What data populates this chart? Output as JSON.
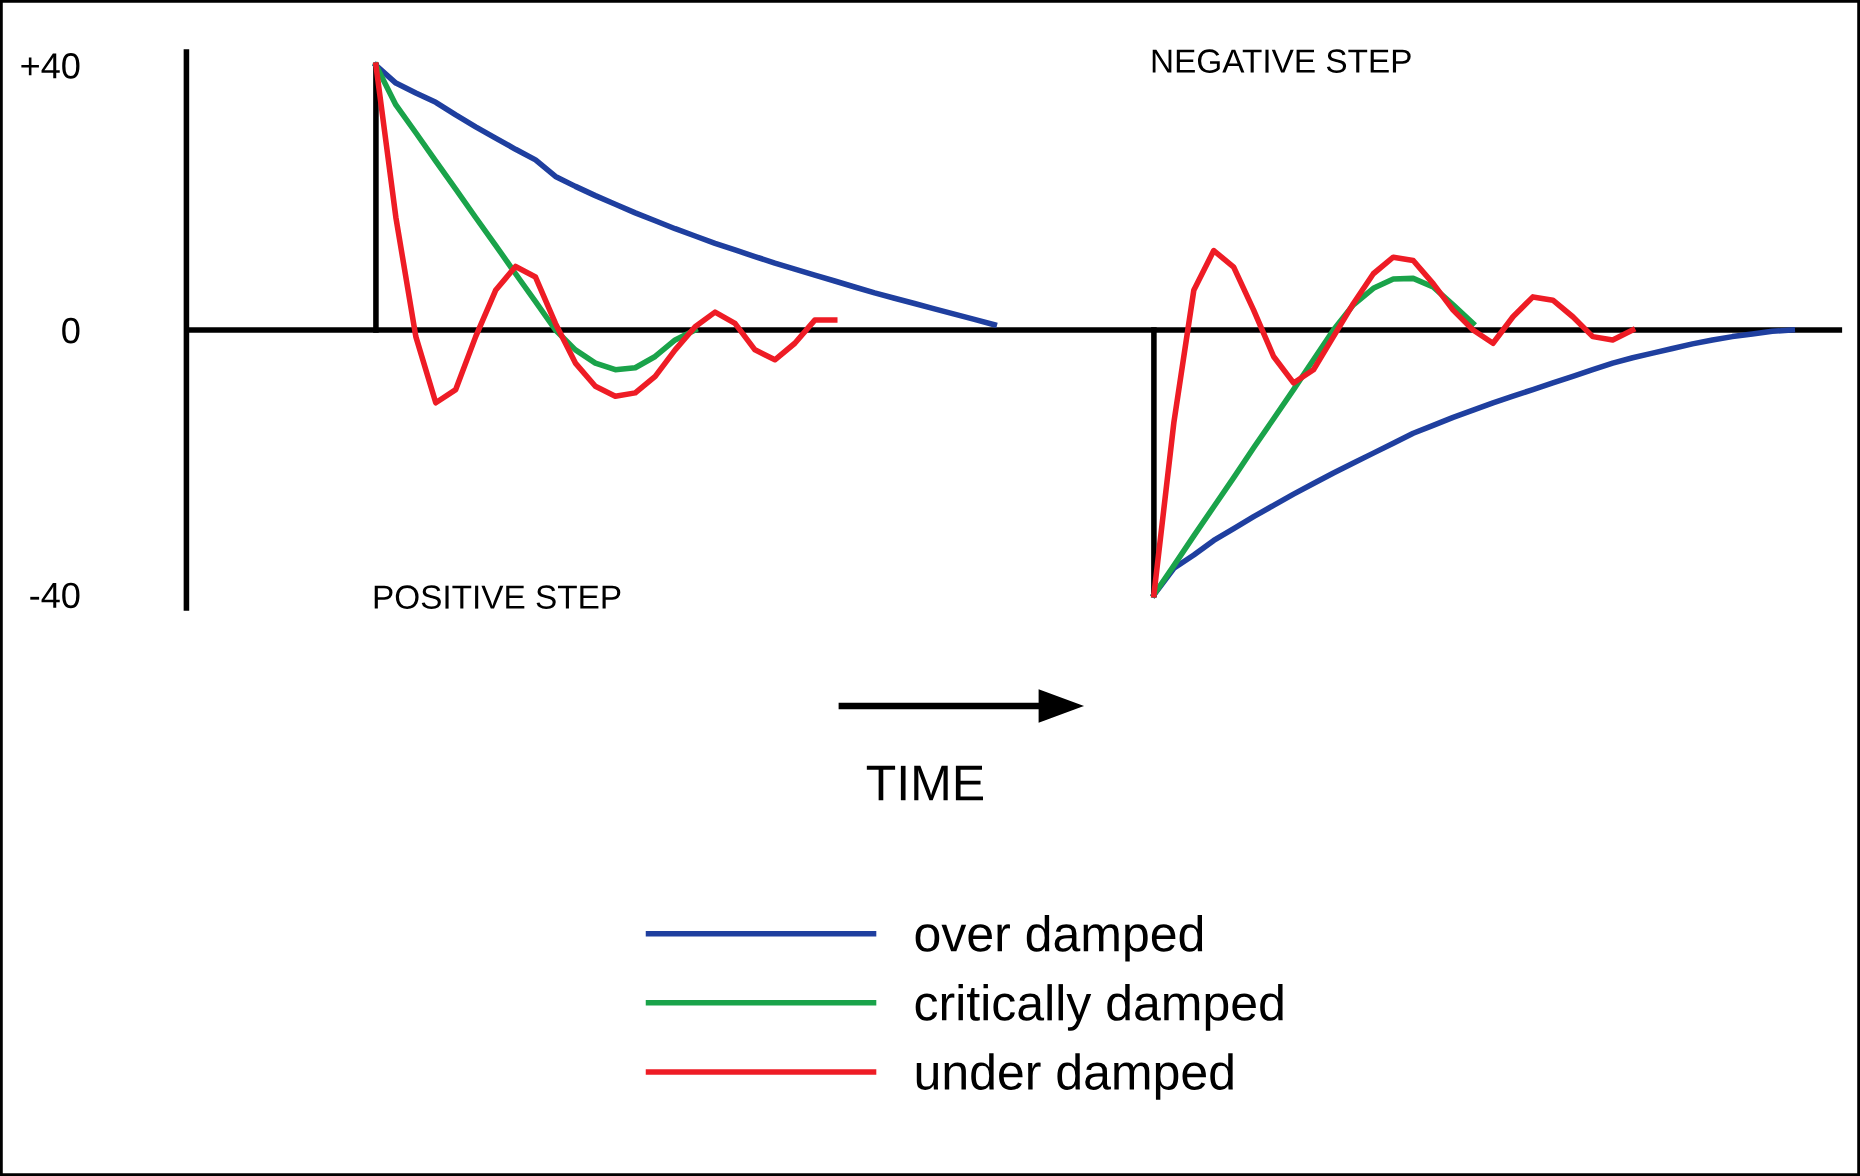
{
  "chart_data": {
    "type": "line",
    "xlabel": "TIME",
    "ylim": [
      -42,
      42
    ],
    "yticks": [
      {
        "value": 40,
        "label": "+40"
      },
      0,
      {
        "value": -40,
        "label": "-40"
      }
    ],
    "tick_labels": "y",
    "legend": "bottom",
    "ref_lines": [
      {
        "axis": "y",
        "value": 0,
        "color": "#000000"
      }
    ],
    "annotations": [
      "NEGATIVE STEP",
      "POSITIVE STEP"
    ],
    "categories": [
      null,
      null,
      null,
      null,
      null,
      null,
      null,
      null,
      null,
      null,
      null,
      null,
      null,
      null,
      null,
      null,
      null,
      null,
      null,
      null,
      null,
      null,
      null,
      null,
      null,
      null,
      null,
      null,
      null,
      null,
      null,
      null,
      null,
      null,
      null,
      null,
      null,
      null,
      null,
      null,
      null,
      null,
      null,
      null,
      null,
      null,
      null,
      null,
      null,
      null,
      null,
      null,
      null,
      null,
      null,
      null,
      null,
      null,
      null,
      null,
      null,
      null,
      null,
      null,
      null,
      null,
      null,
      null,
      null,
      null,
      null,
      null,
      null,
      null,
      null,
      null,
      null,
      null,
      null,
      null,
      null,
      null,
      null
    ],
    "series": [
      {
        "name": "over damped",
        "color": "#1f3f9f",
        "values": [
          null,
          null,
          null,
          null,
          null,
          null,
          null,
          null,
          null,
          40,
          37.3,
          35.8,
          34.4,
          32.5,
          30.7,
          29,
          27.3,
          25.7,
          23.2,
          21.7,
          20.3,
          19,
          17.7,
          16.5,
          15.3,
          14.2,
          13.1,
          12.1,
          11.1,
          10.1,
          9.2,
          8.3,
          7.4,
          6.5,
          5.6,
          4.8,
          4,
          3.2,
          2.4,
          1.6,
          0.8,
          null,
          null,
          null,
          null,
          null,
          null,
          null,
          -40,
          -36,
          -34,
          -31.8,
          -30,
          -28.2,
          -26.5,
          -24.8,
          -23.2,
          -21.6,
          -20.1,
          -18.6,
          -17.1,
          -15.6,
          -14.4,
          -13.2,
          -12.1,
          -11,
          -10,
          -9,
          -8,
          -7,
          -6,
          -5,
          -4.2,
          -3.5,
          -2.8,
          -2.1,
          -1.5,
          -1,
          -0.6,
          -0.2,
          0,
          null,
          null
        ]
      },
      {
        "name": "critically damped",
        "color": "#1aa34a",
        "values": [
          null,
          null,
          null,
          null,
          null,
          null,
          null,
          null,
          null,
          40,
          34,
          29.8,
          25.5,
          21.3,
          17,
          12.8,
          8.5,
          4.3,
          0,
          -3,
          -5,
          -6,
          -5.7,
          -4,
          -1.5,
          0,
          null,
          null,
          null,
          null,
          null,
          null,
          null,
          null,
          null,
          null,
          null,
          null,
          null,
          null,
          null,
          null,
          null,
          null,
          null,
          null,
          null,
          null,
          -40,
          -35.6,
          -31.1,
          -26.7,
          -22.3,
          -17.8,
          -13.4,
          -9,
          -4.5,
          0,
          3.8,
          6.3,
          7.7,
          7.8,
          6.5,
          3.8,
          1,
          null,
          null,
          null,
          null,
          null,
          null,
          null,
          null,
          null,
          null,
          null,
          null,
          null,
          null,
          null,
          null,
          null,
          null
        ]
      },
      {
        "name": "under damped",
        "color": "#ee1c25",
        "values": [
          null,
          null,
          null,
          null,
          null,
          null,
          null,
          null,
          null,
          40,
          17,
          -1,
          -11,
          -9,
          -1,
          6,
          9.6,
          8,
          1,
          -5,
          -8.5,
          -10,
          -9.5,
          -7,
          -3,
          0.5,
          2.7,
          1,
          -3,
          -4.5,
          -2,
          1.5,
          1.5,
          null,
          null,
          null,
          null,
          null,
          null,
          null,
          null,
          null,
          null,
          null,
          null,
          null,
          null,
          null,
          -40,
          -14,
          6,
          12,
          9.5,
          3,
          -4,
          -8,
          -6,
          -1,
          4,
          8.5,
          11,
          10.5,
          7,
          3,
          0,
          -2,
          2,
          5,
          4.5,
          2,
          -1,
          -1.5,
          0,
          null,
          null,
          null,
          null,
          null,
          null,
          null,
          null,
          null,
          null
        ]
      }
    ]
  }
}
